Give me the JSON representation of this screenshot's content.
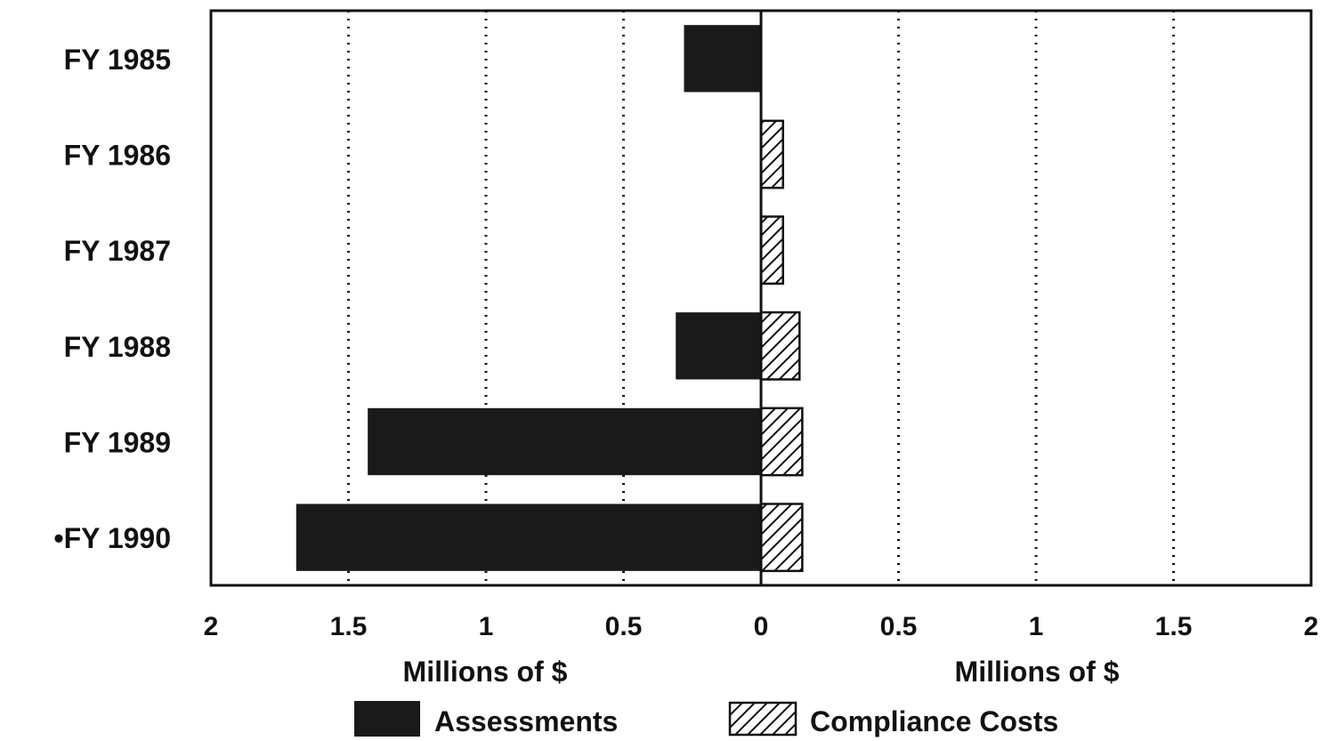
{
  "chart_data": {
    "type": "bar",
    "orientation": "horizontal-diverging",
    "categories": [
      "FY 1985",
      "FY 1986",
      "FY 1987",
      "FY 1988",
      "FY 1989",
      "•FY 1990"
    ],
    "series": [
      {
        "name": "Assessments",
        "side": "left",
        "values": [
          0.28,
          0,
          0,
          0.31,
          1.43,
          1.69
        ]
      },
      {
        "name": "Compliance Costs",
        "side": "right",
        "values": [
          0,
          0.08,
          0.08,
          0.14,
          0.15,
          0.15
        ]
      }
    ],
    "x_ticks": [
      "2",
      "1.5",
      "1",
      "0.5",
      "0",
      "0.5",
      "1",
      "1.5",
      "2"
    ],
    "xlim_left": [
      2,
      0
    ],
    "xlim_right": [
      0,
      2
    ],
    "xlabel_left": "Millions of $",
    "xlabel_right": "Millions of $",
    "grid": "vertical dotted",
    "legend_position": "bottom",
    "colors": {
      "assessments": "#1a1a1a",
      "compliance_costs": "#ffffff",
      "ink": "#111111"
    }
  }
}
